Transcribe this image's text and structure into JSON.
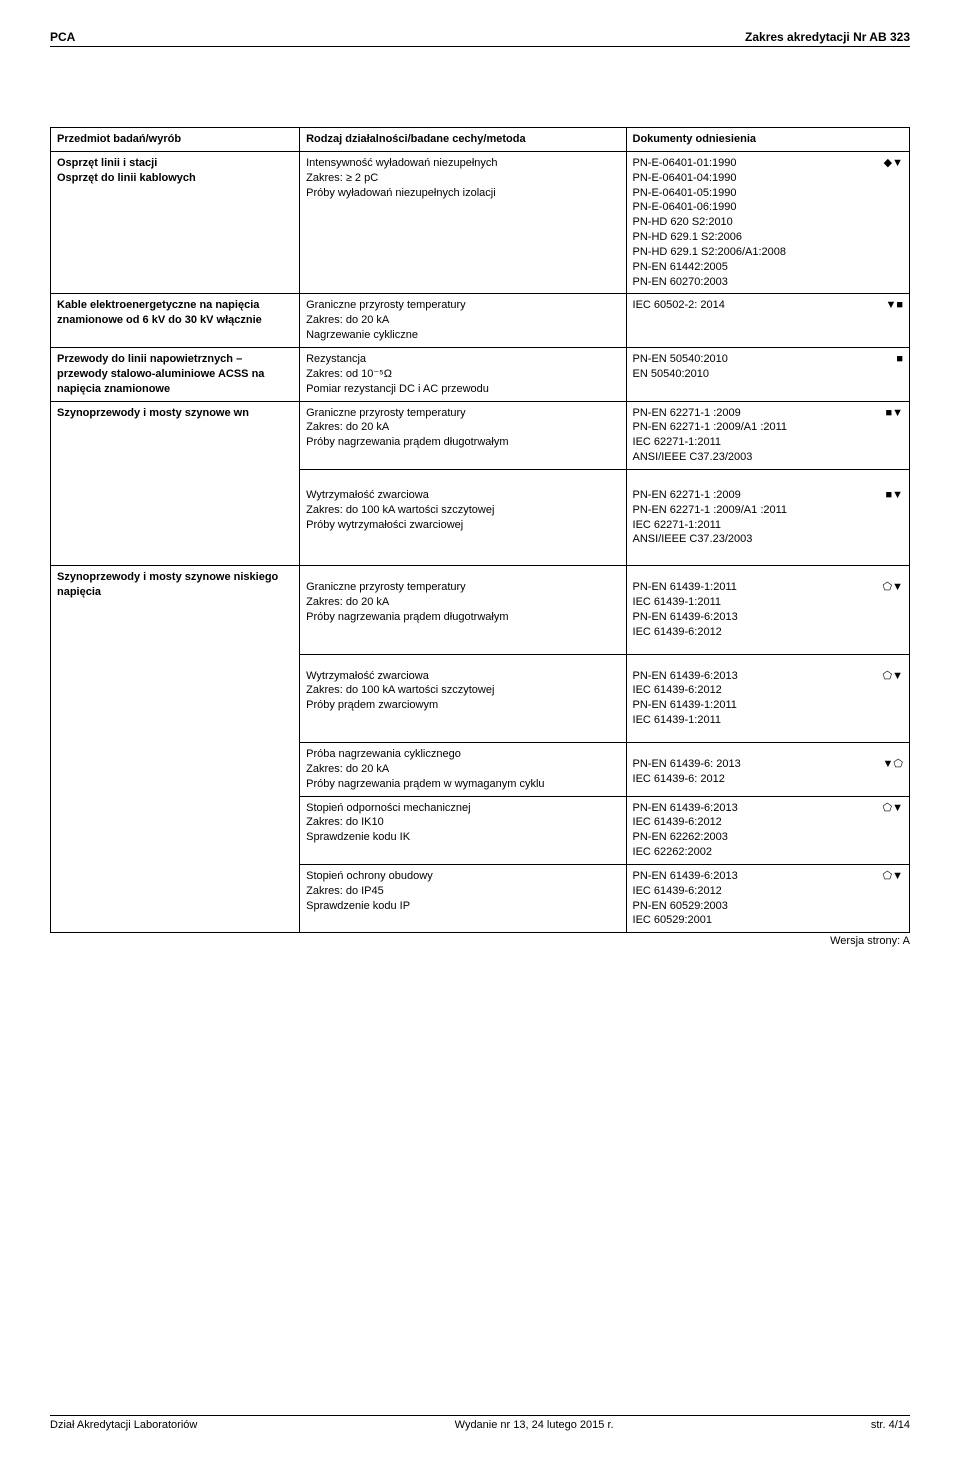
{
  "header": {
    "left": "PCA",
    "right": "Zakres akredytacji Nr AB 323"
  },
  "version_line": "Wersja strony: A",
  "footer": {
    "left": "Dział Akredytacji Laboratoriów",
    "center": "Wydanie nr 13, 24 lutego 2015 r.",
    "right": "str. 4/14"
  },
  "th": {
    "c1": "Przedmiot badań/wyrób",
    "c2": "Rodzaj działalności/badane cechy/metoda",
    "c3": "Dokumenty odniesienia"
  },
  "r1": {
    "col1": "Osprzęt linii i stacji\nOsprzęt do linii  kablowych",
    "col2": "Intensywność wyładowań niezupełnych\nZakres: ≥ 2 pC\nPróby wyładowań niezupełnych izolacji",
    "col3": "PN-E-06401-01:1990\nPN-E-06401-04:1990\nPN-E-06401-05:1990\nPN-E-06401-06:1990\nPN-HD 620 S2:2010\nPN-HD 629.1 S2:2006\nPN-HD 629.1 S2:2006/A1:2008\nPN-EN 61442:2005\nPN-EN 60270:2003",
    "sym": "◆▼"
  },
  "r2": {
    "col1": "Kable elektroenergetyczne na napięcia znamionowe od 6 kV do 30 kV włącznie",
    "col2": "Graniczne przyrosty temperatury\nZakres: do 20 kA\nNagrzewanie cykliczne",
    "col3": "IEC 60502-2: 2014",
    "sym": "▼■"
  },
  "r3": {
    "col1": "Przewody do linii napowietrznych – przewody stalowo-aluminiowe ACSS na napięcia znamionowe",
    "col2": "Rezystancja\nZakres: od 10⁻⁵Ω\nPomiar rezystancji  DC i AC przewodu",
    "col3": "PN-EN 50540:2010\nEN 50540:2010",
    "sym": "■"
  },
  "r4": {
    "col1": "Szynoprzewody i mosty szynowe wn",
    "col2": "Graniczne przyrosty temperatury\nZakres: do 20 kA\nPróby nagrzewania prądem długotrwałym",
    "col3": "PN-EN 62271-1 :2009\nPN-EN 62271-1 :2009/A1 :2011\nIEC 62271-1:2011\nANSI/IEEE C37.23/2003",
    "sym": "■▼"
  },
  "r5": {
    "col2": "Wytrzymałość zwarciowa\nZakres: do 100 kA wartości szczytowej\nPróby wytrzymałości zwarciowej",
    "col3": "PN-EN 62271-1 :2009\nPN-EN 62271-1 :2009/A1 :2011\nIEC 62271-1:2011\nANSI/IEEE C37.23/2003",
    "sym": "■▼"
  },
  "r6": {
    "col1": "Szynoprzewody i mosty szynowe niskiego napięcia",
    "col2": "Graniczne przyrosty temperatury\nZakres: do 20 kA\nPróby nagrzewania prądem długotrwałym",
    "col3": "PN-EN 61439-1:2011\nIEC 61439-1:2011\nPN-EN 61439-6:2013\nIEC 61439-6:2012",
    "sym": "⬠▼"
  },
  "r7": {
    "col2": "Wytrzymałość zwarciowa\nZakres: do 100 kA wartości szczytowej\nPróby prądem zwarciowym",
    "col3": "PN-EN 61439-6:2013\nIEC 61439-6:2012\nPN-EN 61439-1:2011\nIEC 61439-1:2011",
    "sym": "⬠▼"
  },
  "r8": {
    "col2": "Próba nagrzewania cyklicznego\nZakres: do 20 kA\nPróby nagrzewania prądem w wymaganym cyklu",
    "col3": "PN-EN 61439-6: 2013\nIEC 61439-6: 2012",
    "sym": "▼⬠"
  },
  "r9": {
    "col2": "Stopień odporności mechanicznej\nZakres: do IK10\nSprawdzenie kodu IK",
    "col3": "PN-EN 61439-6:2013\nIEC 61439-6:2012\nPN-EN 62262:2003\nIEC 62262:2002",
    "sym": "⬠▼"
  },
  "r10": {
    "col2": "Stopień ochrony obudowy\nZakres: do IP45\nSprawdzenie kodu IP",
    "col3": "PN-EN 61439-6:2013\nIEC 61439-6:2012\nPN-EN 60529:2003\nIEC 60529:2001",
    "sym": "⬠▼"
  }
}
